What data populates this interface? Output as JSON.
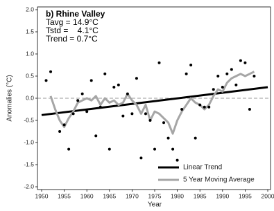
{
  "chart_data": {
    "type": "scatter",
    "annotations": [
      "b) Rhine Valley",
      "Tavg = 14.9°C",
      "Tstd =    4.1°C",
      "Trend = 0.7°C"
    ],
    "x_label": "Year",
    "y_label": "Anomalies (°C)",
    "xlim": [
      1950,
      2000
    ],
    "xticks": [
      1950,
      1955,
      1960,
      1965,
      1970,
      1975,
      1980,
      1985,
      1990,
      1995,
      2000
    ],
    "ylim": [
      -2,
      2
    ],
    "yticks": [
      {
        "value": -2,
        "label": "-2.0"
      },
      -1.5,
      {
        "value": -1,
        "label": "-1.0"
      },
      -0.5,
      {
        "value": 0,
        "label": "0.0"
      },
      0.5,
      {
        "value": 1,
        "label": "1.0"
      },
      1.5,
      {
        "value": 2,
        "label": "2.0"
      }
    ],
    "hline": 0,
    "legend": "lower right",
    "series": [
      {
        "style": "marker",
        "color": "#000000",
        "x": [
          1951,
          1952,
          1954,
          1955,
          1956,
          1957,
          1958,
          1959,
          1960,
          1961,
          1962,
          1963,
          1964,
          1965,
          1966,
          1967,
          1968,
          1969,
          1970,
          1971,
          1972,
          1973,
          1974,
          1975,
          1976,
          1977,
          1978,
          1979,
          1980,
          1981,
          1982,
          1983,
          1984,
          1985,
          1986,
          1987,
          1988,
          1989,
          1990,
          1991,
          1992,
          1993,
          1994,
          1995,
          1996,
          1997
        ],
        "values": [
          0.4,
          0.6,
          -0.75,
          -0.6,
          -1.15,
          -0.35,
          -0.05,
          0.1,
          -0.3,
          0.4,
          -0.85,
          -0.2,
          0.55,
          -1.15,
          0.25,
          0.3,
          -0.4,
          0.1,
          -0.35,
          0.45,
          -1.35,
          -0.35,
          -0.5,
          -1.15,
          0.8,
          -0.55,
          -0.9,
          -1.15,
          -1.4,
          -0.25,
          0.55,
          0.75,
          -0.9,
          -0.15,
          -0.2,
          -0.2,
          0.2,
          0.5,
          0.25,
          0.55,
          0.65,
          0.3,
          0.85,
          0.8,
          -0.25,
          0.5
        ]
      },
      {
        "name": "Linear Trend",
        "style": "line",
        "color": "#000000",
        "width": 3,
        "x": [
          1950,
          2000
        ],
        "values": [
          -0.38,
          0.25
        ]
      },
      {
        "name": "5 Year Moving Average",
        "style": "line",
        "color": "#a6a6a6",
        "width": 3,
        "x": [
          1952,
          1953,
          1954,
          1955,
          1956,
          1957,
          1958,
          1959,
          1960,
          1961,
          1962,
          1963,
          1964,
          1965,
          1966,
          1967,
          1968,
          1969,
          1970,
          1971,
          1972,
          1973,
          1974,
          1975,
          1976,
          1977,
          1978,
          1979,
          1980,
          1981,
          1982,
          1983,
          1984,
          1985,
          1986,
          1987,
          1988,
          1989,
          1990,
          1991,
          1992,
          1993,
          1994,
          1995,
          1996,
          1997
        ],
        "values": [
          0.05,
          -0.25,
          -0.5,
          -0.65,
          -0.45,
          -0.3,
          -0.1,
          -0.05,
          0.0,
          -0.05,
          0.05,
          -0.15,
          0.0,
          -0.1,
          -0.05,
          -0.15,
          -0.1,
          0.1,
          -0.05,
          -0.15,
          -0.35,
          -0.15,
          -0.5,
          -0.3,
          -0.35,
          -0.45,
          -0.55,
          -0.8,
          -0.5,
          -0.3,
          -0.15,
          0.0,
          -0.1,
          -0.15,
          -0.25,
          -0.15,
          0.05,
          0.2,
          0.15,
          0.35,
          0.45,
          0.5,
          0.55,
          0.5,
          0.55,
          0.6
        ]
      }
    ]
  }
}
